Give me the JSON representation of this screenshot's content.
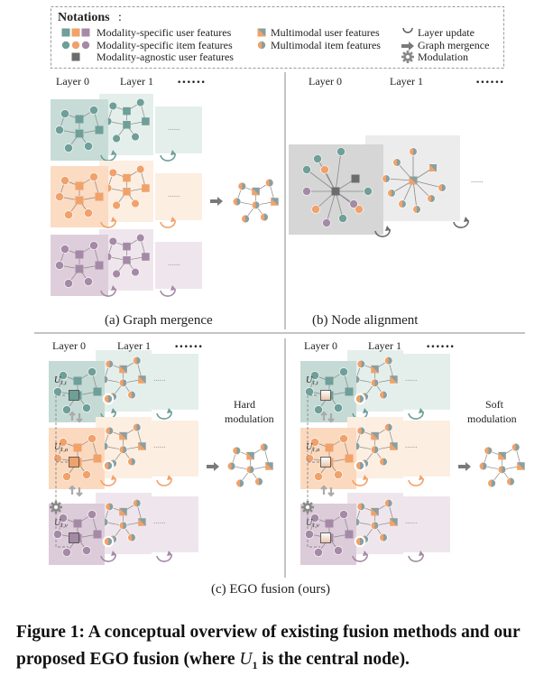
{
  "legend": {
    "title": "Notations",
    "title_colon": ":",
    "items": [
      {
        "label": "Modality-specific user features"
      },
      {
        "label": "Modality-specific item features"
      },
      {
        "label": "Modality-agnostic user features"
      },
      {
        "label": "Multimodal user features"
      },
      {
        "label": "Multimodal item features"
      },
      {
        "label": "Layer update"
      },
      {
        "label": "Graph mergence"
      },
      {
        "label": "Modulation"
      }
    ]
  },
  "layers": {
    "layer0": "Layer 0",
    "layer1": "Layer 1",
    "more": "••••••",
    "placeholder": "......"
  },
  "panels": {
    "a": "(a) Graph mergence",
    "b": "(b) Node alignment",
    "c": "(c) EGO fusion (ours)"
  },
  "modulation": {
    "hard": [
      "Hard",
      "modulation"
    ],
    "soft": [
      "Soft",
      "modulation"
    ]
  },
  "node_labels": {
    "user_t": "U",
    "sub_t": "1,t",
    "sub_a": "1,a",
    "sub_v": "1,v"
  },
  "colors": {
    "teal": "#6e9f98",
    "teal_bg": "#c5dad5",
    "teal_bg2": "#e4efeb",
    "orange": "#f0a26a",
    "orange_bg": "#fbd9bf",
    "orange_bg2": "#fdeee2",
    "purple": "#a48aa6",
    "purple_bg": "#dccbd9",
    "purple_bg2": "#efe6ed",
    "gray": "#6c6c6c",
    "gray_bg": "#d6d6d6"
  },
  "caption": {
    "main": "Figure 1: A conceptual overview of existing fusion methods and our proposed EGO fusion (where ",
    "sym": "U",
    "sub": "1",
    "end": " is the central node)."
  }
}
